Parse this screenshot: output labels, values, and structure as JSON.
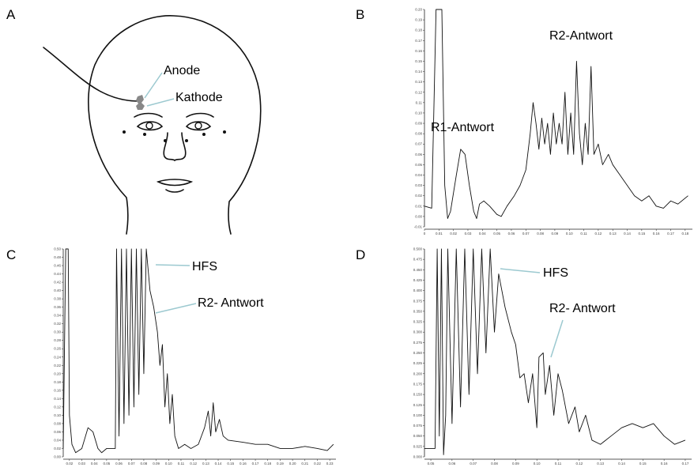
{
  "figure": {
    "panel_labels": [
      "A",
      "B",
      "C",
      "D"
    ],
    "diagram": {
      "labels": [
        "Anode",
        "Kathode"
      ]
    }
  },
  "chart_data": [
    {
      "type": "line",
      "color": "#111",
      "annotations": [
        "R2-Antwort",
        "R1-Antwort"
      ],
      "xlim": [
        0,
        0.185
      ],
      "ylim": [
        -0.01,
        0.2
      ],
      "x": [
        0,
        0.005,
        0.008,
        0.012,
        0.014,
        0.016,
        0.018,
        0.022,
        0.025,
        0.028,
        0.031,
        0.034,
        0.036,
        0.038,
        0.041,
        0.045,
        0.05,
        0.053,
        0.057,
        0.062,
        0.066,
        0.07,
        0.073,
        0.075,
        0.077,
        0.079,
        0.081,
        0.083,
        0.085,
        0.087,
        0.089,
        0.091,
        0.093,
        0.095,
        0.097,
        0.099,
        0.101,
        0.103,
        0.105,
        0.107,
        0.109,
        0.111,
        0.113,
        0.115,
        0.117,
        0.12,
        0.123,
        0.127,
        0.13,
        0.135,
        0.14,
        0.145,
        0.15,
        0.155,
        0.16,
        0.165,
        0.17,
        0.175,
        0.182
      ],
      "values": [
        0.01,
        0.008,
        0.2,
        0.2,
        0.03,
        -0.002,
        0.005,
        0.04,
        0.065,
        0.06,
        0.03,
        0.005,
        -0.002,
        0.012,
        0.015,
        0.01,
        0.002,
        0,
        0.01,
        0.02,
        0.03,
        0.045,
        0.08,
        0.11,
        0.09,
        0.065,
        0.095,
        0.07,
        0.09,
        0.06,
        0.1,
        0.07,
        0.09,
        0.07,
        0.12,
        0.06,
        0.1,
        0.06,
        0.15,
        0.08,
        0.05,
        0.09,
        0.06,
        0.145,
        0.06,
        0.07,
        0.05,
        0.06,
        0.05,
        0.04,
        0.03,
        0.02,
        0.015,
        0.02,
        0.01,
        0.008,
        0.015,
        0.012,
        0.02
      ],
      "yticks": [
        {
          "value": -0.01,
          "label": "-0.01"
        },
        {
          "value": 0,
          "label": "0.00"
        },
        {
          "value": 0.01,
          "label": "0.01"
        },
        {
          "value": 0.02,
          "label": "0.02"
        },
        {
          "value": 0.03,
          "label": "0.03"
        },
        {
          "value": 0.04,
          "label": "0.04"
        },
        {
          "value": 0.05,
          "label": "0.05"
        },
        {
          "value": 0.06,
          "label": "0.06"
        },
        {
          "value": 0.07,
          "label": "0.07"
        },
        {
          "value": 0.08,
          "label": "0.08"
        },
        {
          "value": 0.09,
          "label": "0.09"
        },
        {
          "value": 0.1,
          "label": "0.10"
        },
        {
          "value": 0.11,
          "label": "0.11"
        },
        {
          "value": 0.12,
          "label": "0.12"
        },
        {
          "value": 0.13,
          "label": "0.13"
        },
        {
          "value": 0.14,
          "label": "0.14"
        },
        {
          "value": 0.15,
          "label": "0.15"
        },
        {
          "value": 0.16,
          "label": "0.16"
        },
        {
          "value": 0.17,
          "label": "0.17"
        },
        {
          "value": 0.18,
          "label": "0.18"
        },
        {
          "value": 0.19,
          "label": "0.19"
        },
        {
          "value": 0.2,
          "label": "0.20"
        }
      ],
      "xticks": [
        0,
        {
          "value": 0.01,
          "label": "0.01"
        },
        {
          "value": 0.02,
          "label": "0.02"
        },
        {
          "value": 0.03,
          "label": "0.03"
        },
        {
          "value": 0.04,
          "label": "0.04"
        },
        {
          "value": 0.05,
          "label": "0.05"
        },
        {
          "value": 0.06,
          "label": "0.06"
        },
        {
          "value": 0.07,
          "label": "0.07"
        },
        {
          "value": 0.08,
          "label": "0.08"
        },
        {
          "value": 0.09,
          "label": "0.09"
        },
        {
          "value": 0.1,
          "label": "0.10"
        },
        {
          "value": 0.11,
          "label": "0.11"
        },
        {
          "value": 0.12,
          "label": "0.12"
        },
        {
          "value": 0.13,
          "label": "0.13"
        },
        {
          "value": 0.14,
          "label": "0.14"
        },
        {
          "value": 0.15,
          "label": "0.15"
        },
        {
          "value": 0.16,
          "label": "0.16"
        },
        {
          "value": 0.17,
          "label": "0.17"
        },
        {
          "value": 0.18,
          "label": "0.18"
        }
      ]
    },
    {
      "type": "line",
      "color": "#111",
      "annotations": [
        "HFS",
        "R2- Antwort"
      ],
      "xlim": [
        0.015,
        0.235
      ],
      "ylim": [
        0,
        0.5
      ],
      "x": [
        0.015,
        0.017,
        0.019,
        0.02,
        0.022,
        0.025,
        0.03,
        0.035,
        0.039,
        0.043,
        0.046,
        0.05,
        0.057,
        0.058,
        0.06,
        0.062,
        0.064,
        0.066,
        0.068,
        0.07,
        0.072,
        0.074,
        0.076,
        0.078,
        0.08,
        0.082,
        0.085,
        0.088,
        0.091,
        0.093,
        0.095,
        0.097,
        0.099,
        0.101,
        0.103,
        0.105,
        0.108,
        0.113,
        0.118,
        0.124,
        0.129,
        0.132,
        0.134,
        0.136,
        0.138,
        0.141,
        0.144,
        0.148,
        0.16,
        0.17,
        0.18,
        0.19,
        0.2,
        0.21,
        0.22,
        0.228,
        0.233
      ],
      "values": [
        0.02,
        0.5,
        0.5,
        0.1,
        0.03,
        0.01,
        0.02,
        0.07,
        0.06,
        0.02,
        0.01,
        0.02,
        0.02,
        0.5,
        0.05,
        0.5,
        0.08,
        0.5,
        0.1,
        0.5,
        0.12,
        0.5,
        0.15,
        0.5,
        0.2,
        0.5,
        0.4,
        0.36,
        0.3,
        0.22,
        0.27,
        0.12,
        0.2,
        0.08,
        0.15,
        0.05,
        0.02,
        0.03,
        0.02,
        0.03,
        0.07,
        0.11,
        0.05,
        0.13,
        0.06,
        0.09,
        0.05,
        0.04,
        0.035,
        0.03,
        0.03,
        0.02,
        0.02,
        0.025,
        0.02,
        0.015,
        0.03
      ],
      "yticks": [
        {
          "value": 0,
          "label": "0.00"
        },
        {
          "value": 0.02,
          "label": "0.02"
        },
        {
          "value": 0.04,
          "label": "0.04"
        },
        {
          "value": 0.06,
          "label": "0.06"
        },
        {
          "value": 0.08,
          "label": "0.08"
        },
        {
          "value": 0.1,
          "label": "0.10"
        },
        {
          "value": 0.12,
          "label": "0.12"
        },
        {
          "value": 0.14,
          "label": "0.14"
        },
        {
          "value": 0.16,
          "label": "0.16"
        },
        {
          "value": 0.18,
          "label": "0.18"
        },
        {
          "value": 0.2,
          "label": "0.20"
        },
        {
          "value": 0.22,
          "label": "0.22"
        },
        {
          "value": 0.24,
          "label": "0.24"
        },
        {
          "value": 0.26,
          "label": "0.26"
        },
        {
          "value": 0.28,
          "label": "0.28"
        },
        {
          "value": 0.3,
          "label": "0.30"
        },
        {
          "value": 0.32,
          "label": "0.32"
        },
        {
          "value": 0.34,
          "label": "0.34"
        },
        {
          "value": 0.36,
          "label": "0.36"
        },
        {
          "value": 0.38,
          "label": "0.38"
        },
        {
          "value": 0.4,
          "label": "0.40"
        },
        {
          "value": 0.42,
          "label": "0.42"
        },
        {
          "value": 0.44,
          "label": "0.44"
        },
        {
          "value": 0.46,
          "label": "0.46"
        },
        {
          "value": 0.48,
          "label": "0.48"
        },
        {
          "value": 0.5,
          "label": "0.50"
        }
      ],
      "xticks": [
        0.02,
        0.03,
        0.04,
        0.05,
        0.06,
        0.07,
        0.08,
        0.09,
        {
          "value": 0.1,
          "label": "0.10"
        },
        0.11,
        0.12,
        0.13,
        0.14,
        0.15,
        0.16,
        0.17,
        0.18,
        0.19,
        {
          "value": 0.2,
          "label": "0.20"
        },
        0.21,
        0.22,
        0.23
      ]
    },
    {
      "type": "line",
      "color": "#111",
      "annotations": [
        "HFS",
        "R2- Antwort"
      ],
      "xlim": [
        0.047,
        0.173
      ],
      "ylim": [
        0,
        0.5
      ],
      "x": [
        0.047,
        0.052,
        0.053,
        0.054,
        0.055,
        0.056,
        0.057,
        0.058,
        0.06,
        0.062,
        0.064,
        0.066,
        0.068,
        0.07,
        0.072,
        0.074,
        0.076,
        0.078,
        0.08,
        0.082,
        0.085,
        0.088,
        0.09,
        0.092,
        0.094,
        0.096,
        0.098,
        0.1,
        0.101,
        0.103,
        0.104,
        0.106,
        0.108,
        0.11,
        0.112,
        0.115,
        0.118,
        0.12,
        0.123,
        0.126,
        0.13,
        0.135,
        0.14,
        0.145,
        0.15,
        0.155,
        0.16,
        0.165,
        0.17
      ],
      "values": [
        0.02,
        0.02,
        0.5,
        0.05,
        0.5,
        0.005,
        0.1,
        0.5,
        0.08,
        0.5,
        0.12,
        0.5,
        0.15,
        0.5,
        0.2,
        0.5,
        0.25,
        0.5,
        0.3,
        0.44,
        0.36,
        0.3,
        0.27,
        0.19,
        0.2,
        0.13,
        0.2,
        0.07,
        0.24,
        0.25,
        0.15,
        0.22,
        0.1,
        0.2,
        0.16,
        0.08,
        0.12,
        0.06,
        0.1,
        0.04,
        0.03,
        0.05,
        0.07,
        0.08,
        0.07,
        0.08,
        0.05,
        0.03,
        0.04
      ],
      "yticks": [
        {
          "value": 0,
          "label": "0.000"
        },
        {
          "value": 0.025,
          "label": "0.025"
        },
        {
          "value": 0.05,
          "label": "0.050"
        },
        {
          "value": 0.075,
          "label": "0.075"
        },
        {
          "value": 0.1,
          "label": "0.100"
        },
        {
          "value": 0.125,
          "label": "0.125"
        },
        {
          "value": 0.15,
          "label": "0.150"
        },
        {
          "value": 0.175,
          "label": "0.175"
        },
        {
          "value": 0.2,
          "label": "0.200"
        },
        {
          "value": 0.225,
          "label": "0.225"
        },
        {
          "value": 0.25,
          "label": "0.250"
        },
        {
          "value": 0.275,
          "label": "0.275"
        },
        {
          "value": 0.3,
          "label": "0.300"
        },
        {
          "value": 0.325,
          "label": "0.325"
        },
        {
          "value": 0.35,
          "label": "0.350"
        },
        {
          "value": 0.375,
          "label": "0.375"
        },
        {
          "value": 0.4,
          "label": "0.400"
        },
        {
          "value": 0.425,
          "label": "0.425"
        },
        {
          "value": 0.45,
          "label": "0.450"
        },
        {
          "value": 0.475,
          "label": "0.475"
        },
        {
          "value": 0.5,
          "label": "0.500"
        }
      ],
      "xticks": [
        0.05,
        0.06,
        0.07,
        0.08,
        0.09,
        {
          "value": 0.1,
          "label": "0.10"
        },
        0.11,
        0.12,
        0.13,
        0.14,
        0.15,
        0.16,
        0.17
      ]
    }
  ]
}
